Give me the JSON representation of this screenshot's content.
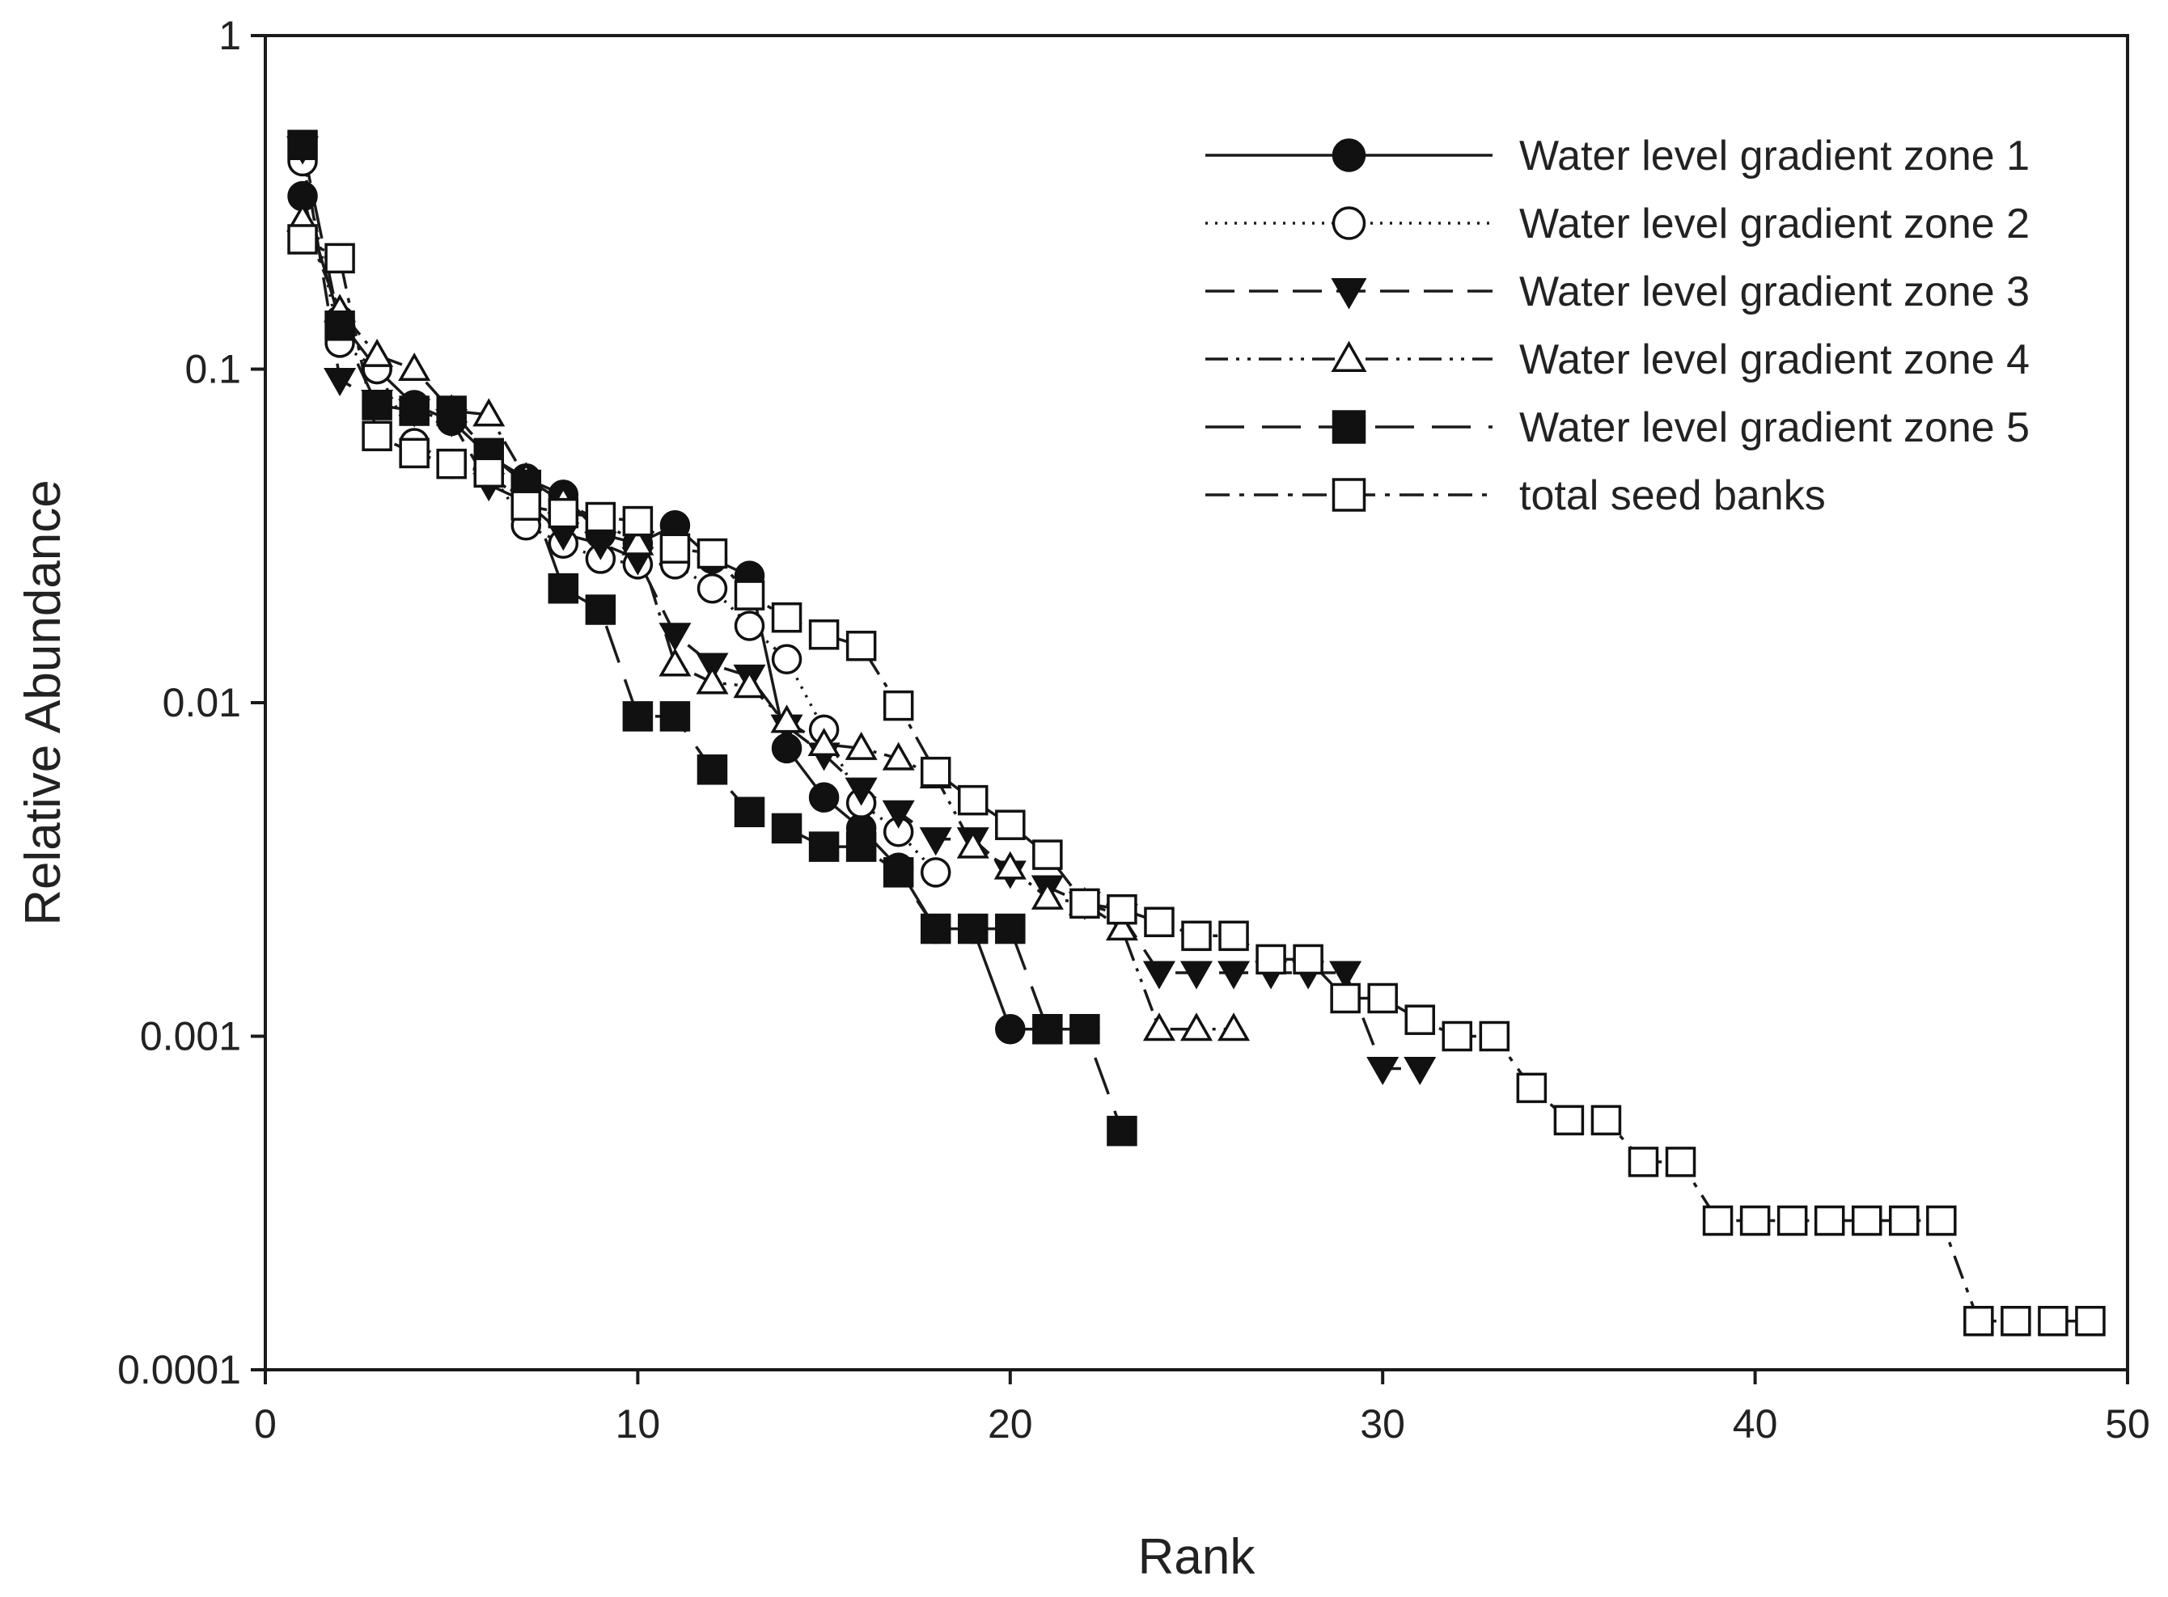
{
  "chart_data": {
    "type": "scatter",
    "xlabel": "Rank",
    "ylabel": "Relative Abundance",
    "xlim": [
      0,
      50
    ],
    "ylim": [
      0.0001,
      1
    ],
    "yscale": "log",
    "xticks": [
      0,
      10,
      20,
      30,
      40,
      50
    ],
    "xtick_labels": [
      "0",
      "10",
      "20",
      "30",
      "40",
      "50"
    ],
    "yticks": [
      0.0001,
      0.001,
      0.01,
      0.1,
      1
    ],
    "ytick_labels": [
      "0.0001",
      "0.001",
      "0.01",
      "0.1",
      "1"
    ],
    "grid": false,
    "legend_position": "top-right",
    "series": [
      {
        "name": "Water level gradient zone 1",
        "marker": "circle-filled",
        "line": "solid",
        "x": [
          1,
          2,
          3,
          4,
          5,
          6,
          7,
          8,
          9,
          10,
          11,
          12,
          13,
          14,
          15,
          16,
          17,
          18,
          19,
          20,
          21,
          22
        ],
        "y": [
          0.33,
          0.14,
          0.1,
          0.078,
          0.07,
          0.055,
          0.047,
          0.042,
          0.032,
          0.03,
          0.034,
          0.027,
          0.024,
          0.0073,
          0.0052,
          0.0042,
          0.0032,
          0.0021,
          0.0021,
          0.00105,
          0.00105,
          0.00105
        ]
      },
      {
        "name": "Water level gradient zone 2",
        "marker": "circle-open",
        "line": "dotted",
        "x": [
          1,
          2,
          3,
          4,
          5,
          6,
          7,
          8,
          9,
          10,
          11,
          12,
          13,
          14,
          15,
          16,
          17,
          18
        ],
        "y": [
          0.42,
          0.12,
          0.1,
          0.06,
          0.052,
          0.05,
          0.034,
          0.03,
          0.027,
          0.026,
          0.026,
          0.022,
          0.017,
          0.0135,
          0.0083,
          0.005,
          0.0041,
          0.0031
        ]
      },
      {
        "name": "Water level gradient zone 3",
        "marker": "triangle-down-filled",
        "line": "dashed",
        "x": [
          1,
          2,
          3,
          4,
          5,
          6,
          7,
          8,
          9,
          10,
          11,
          12,
          13,
          14,
          15,
          16,
          17,
          18,
          19,
          20,
          21,
          22,
          23,
          24,
          25,
          26,
          27,
          28,
          29,
          30,
          31
        ],
        "y": [
          0.46,
          0.093,
          0.08,
          0.075,
          0.07,
          0.045,
          0.04,
          0.032,
          0.03,
          0.027,
          0.016,
          0.013,
          0.012,
          0.0085,
          0.007,
          0.0055,
          0.0047,
          0.0039,
          0.0039,
          0.0031,
          0.0028,
          0.0025,
          0.0023,
          0.00155,
          0.00155,
          0.00155,
          0.00155,
          0.00155,
          0.00155,
          0.0008,
          0.0008
        ]
      },
      {
        "name": "Water level gradient zone 4",
        "marker": "triangle-up-open",
        "line": "dash-dot-dot",
        "x": [
          1,
          2,
          3,
          4,
          5,
          6,
          7,
          8,
          9,
          10,
          11,
          12,
          13,
          14,
          15,
          16,
          17,
          18,
          19,
          20,
          21,
          22,
          23,
          24,
          25,
          26
        ],
        "y": [
          0.28,
          0.15,
          0.11,
          0.1,
          0.075,
          0.073,
          0.047,
          0.04,
          0.035,
          0.03,
          0.013,
          0.0115,
          0.0112,
          0.0088,
          0.0075,
          0.0073,
          0.0068,
          0.006,
          0.0037,
          0.0032,
          0.0026,
          0.0025,
          0.0021,
          0.00105,
          0.00105,
          0.00105
        ]
      },
      {
        "name": "Water level gradient zone 5",
        "marker": "square-filled",
        "line": "long-dash",
        "x": [
          1,
          2,
          3,
          4,
          5,
          6,
          7,
          8,
          9,
          10,
          11,
          12,
          13,
          14,
          15,
          16,
          17,
          18,
          19,
          20,
          21,
          22,
          23
        ],
        "y": [
          0.47,
          0.135,
          0.078,
          0.075,
          0.075,
          0.056,
          0.045,
          0.022,
          0.019,
          0.0091,
          0.0091,
          0.0063,
          0.0047,
          0.0042,
          0.0037,
          0.0037,
          0.0031,
          0.0021,
          0.0021,
          0.0021,
          0.00105,
          0.00105,
          0.00052
        ]
      },
      {
        "name": "total seed banks",
        "marker": "square-open",
        "line": "dash-dot",
        "x": [
          1,
          2,
          3,
          4,
          5,
          6,
          7,
          8,
          9,
          10,
          11,
          12,
          13,
          14,
          15,
          16,
          17,
          18,
          19,
          20,
          21,
          22,
          23,
          24,
          25,
          26,
          27,
          28,
          29,
          30,
          31,
          32,
          33,
          34,
          35,
          36,
          37,
          38,
          39,
          40,
          41,
          42,
          43,
          44,
          45,
          46,
          47,
          48,
          49
        ],
        "y": [
          0.245,
          0.215,
          0.063,
          0.056,
          0.052,
          0.049,
          0.039,
          0.037,
          0.036,
          0.035,
          0.029,
          0.028,
          0.021,
          0.018,
          0.016,
          0.0148,
          0.0098,
          0.0062,
          0.0051,
          0.0043,
          0.0035,
          0.0025,
          0.0024,
          0.0022,
          0.002,
          0.002,
          0.0017,
          0.0017,
          0.0013,
          0.0013,
          0.00112,
          0.001,
          0.001,
          0.0007,
          0.00056,
          0.00056,
          0.00042,
          0.00042,
          0.00028,
          0.00028,
          0.00028,
          0.00028,
          0.00028,
          0.00028,
          0.00028,
          0.00014,
          0.00014,
          0.00014,
          0.00014
        ]
      }
    ]
  }
}
